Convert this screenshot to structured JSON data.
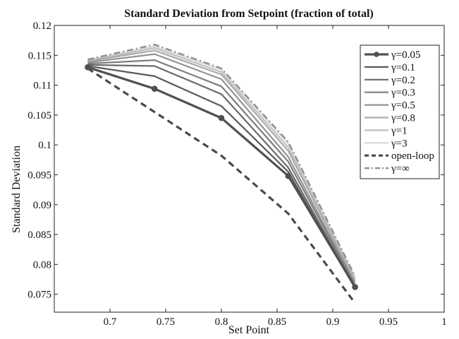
{
  "chart_data": {
    "type": "line",
    "title": "Standard Deviation from Setpoint (fraction of total)",
    "xlabel": "Set Point",
    "ylabel": "Standard Deviation",
    "xlim": [
      0.65,
      1.0
    ],
    "ylim": [
      0.072,
      0.12
    ],
    "xticks": [
      0.7,
      0.75,
      0.8,
      0.85,
      0.9,
      0.95,
      1.0
    ],
    "xtick_labels": [
      "0.7",
      "0.75",
      "0.8",
      "0.85",
      "0.9",
      "0.95",
      "1"
    ],
    "yticks": [
      0.075,
      0.08,
      0.085,
      0.09,
      0.095,
      0.1,
      0.105,
      0.11,
      0.115,
      0.12
    ],
    "ytick_labels": [
      "0.075",
      "0.08",
      "0.085",
      "0.09",
      "0.095",
      "0.1",
      "0.105",
      "0.11",
      "0.115",
      "0.12"
    ],
    "grid": false,
    "legend_position": "top-right",
    "x": [
      0.68,
      0.74,
      0.8,
      0.86,
      0.92
    ],
    "series": [
      {
        "name": "γ=0.05",
        "values": [
          0.113,
          0.1094,
          0.1045,
          0.0948,
          0.0762
        ],
        "color": "#505050",
        "style": "solid-marker"
      },
      {
        "name": "γ=0.1",
        "values": [
          0.1132,
          0.1115,
          0.1065,
          0.0955,
          0.076
        ],
        "color": "#5a5a5a",
        "style": "solid"
      },
      {
        "name": "γ=0.2",
        "values": [
          0.1134,
          0.1132,
          0.1085,
          0.0962,
          0.0762
        ],
        "color": "#6a6a6a",
        "style": "solid"
      },
      {
        "name": "γ=0.3",
        "values": [
          0.1136,
          0.1142,
          0.1098,
          0.0972,
          0.0765
        ],
        "color": "#7d7d7d",
        "style": "solid"
      },
      {
        "name": "γ=0.5",
        "values": [
          0.1138,
          0.1152,
          0.111,
          0.098,
          0.0768
        ],
        "color": "#939393",
        "style": "solid"
      },
      {
        "name": "γ=0.8",
        "values": [
          0.114,
          0.1158,
          0.1118,
          0.099,
          0.0772
        ],
        "color": "#aaaaaa",
        "style": "solid"
      },
      {
        "name": "γ=1",
        "values": [
          0.1141,
          0.1162,
          0.1122,
          0.0996,
          0.0775
        ],
        "color": "#c0c0c0",
        "style": "solid"
      },
      {
        "name": "γ=3",
        "values": [
          0.1142,
          0.1165,
          0.1126,
          0.1002,
          0.0778
        ],
        "color": "#d6d6d6",
        "style": "solid"
      },
      {
        "name": "open-loop",
        "values": [
          0.1128,
          0.1055,
          0.0982,
          0.0885,
          0.0735
        ],
        "color": "#4a4a4a",
        "style": "dashed"
      },
      {
        "name": "γ=∞",
        "values": [
          0.1143,
          0.1168,
          0.1128,
          0.1005,
          0.078
        ],
        "color": "#8f8f8f",
        "style": "dashdot"
      }
    ]
  }
}
